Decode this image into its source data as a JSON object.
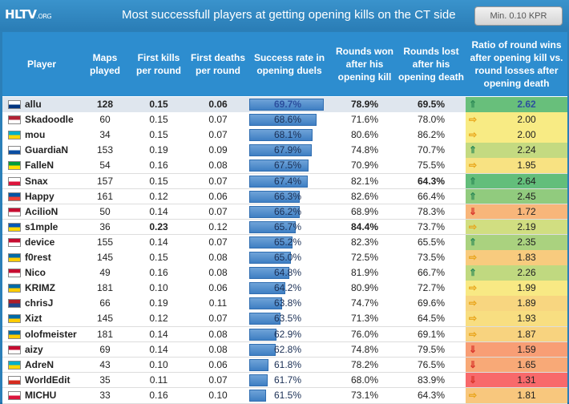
{
  "header": {
    "logo": "HLTV",
    "logo_suffix": ".ORG",
    "title": "Most successfull players at getting opening kills on the CT side",
    "filter_button": "Min. 0.10 KPR"
  },
  "columns": [
    "Player",
    "Maps played",
    "First kills per round",
    "First deaths per round",
    "Success rate in opening duels",
    "Rounds won after his opening kill",
    "Rounds lost after his opening death",
    "Ratio of round wins after opening kill vs. round losses after opening death"
  ],
  "colors": {
    "header_bg": "#2d8dcf",
    "bar": "#4f8fcf",
    "highlight_text": "#2c4f9e",
    "best_green": "#2a7a1a"
  },
  "chart_data": {
    "type": "table",
    "title": "Most successfull players at getting opening kills on the CT side",
    "filter": "Min. 0.10 KPR",
    "rows": [
      {
        "player": "allu",
        "flag": "finland",
        "maps": "128",
        "fk": "0.15",
        "fd": "0.06",
        "success": "69.7%",
        "success_value": 69.7,
        "won": "78.9%",
        "lost": "69.5%",
        "ratio": "2.62",
        "ratio_value": 2.62,
        "trend": "up"
      },
      {
        "player": "Skadoodle",
        "flag": "usa",
        "maps": "60",
        "fk": "0.15",
        "fd": "0.07",
        "success": "68.6%",
        "success_value": 68.6,
        "won": "71.6%",
        "lost": "78.0%",
        "ratio": "2.00",
        "ratio_value": 2.0,
        "trend": "flat"
      },
      {
        "player": "mou",
        "flag": "kazakhstan",
        "maps": "34",
        "fk": "0.15",
        "fd": "0.07",
        "success": "68.1%",
        "success_value": 68.1,
        "won": "80.6%",
        "lost": "86.2%",
        "ratio": "2.00",
        "ratio_value": 2.0,
        "trend": "flat"
      },
      {
        "player": "GuardiaN",
        "flag": "slovakia",
        "maps": "153",
        "fk": "0.19",
        "fd": "0.09",
        "success": "67.9%",
        "success_value": 67.9,
        "won": "74.8%",
        "lost": "70.7%",
        "ratio": "2.24",
        "ratio_value": 2.24,
        "trend": "up"
      },
      {
        "player": "FalleN",
        "flag": "brazil",
        "maps": "54",
        "fk": "0.16",
        "fd": "0.08",
        "success": "67.5%",
        "success_value": 67.5,
        "won": "70.9%",
        "lost": "75.5%",
        "ratio": "1.95",
        "ratio_value": 1.95,
        "trend": "flat"
      },
      {
        "player": "Snax",
        "flag": "poland",
        "maps": "157",
        "fk": "0.15",
        "fd": "0.07",
        "success": "67.4%",
        "success_value": 67.4,
        "won": "82.1%",
        "lost": "64.3%",
        "ratio": "2.64",
        "ratio_value": 2.64,
        "trend": "up"
      },
      {
        "player": "Happy",
        "flag": "france",
        "maps": "161",
        "fk": "0.12",
        "fd": "0.06",
        "success": "66.3%",
        "success_value": 66.3,
        "won": "82.6%",
        "lost": "66.4%",
        "ratio": "2.45",
        "ratio_value": 2.45,
        "trend": "up"
      },
      {
        "player": "AcilioN",
        "flag": "denmark",
        "maps": "50",
        "fk": "0.14",
        "fd": "0.07",
        "success": "66.2%",
        "success_value": 66.2,
        "won": "68.9%",
        "lost": "78.3%",
        "ratio": "1.72",
        "ratio_value": 1.72,
        "trend": "down"
      },
      {
        "player": "s1mple",
        "flag": "ukraine",
        "maps": "36",
        "fk": "0.23",
        "fd": "0.12",
        "success": "65.7%",
        "success_value": 65.7,
        "won": "84.4%",
        "lost": "73.7%",
        "ratio": "2.19",
        "ratio_value": 2.19,
        "trend": "flat"
      },
      {
        "player": "device",
        "flag": "denmark",
        "maps": "155",
        "fk": "0.14",
        "fd": "0.07",
        "success": "65.2%",
        "success_value": 65.2,
        "won": "82.3%",
        "lost": "65.5%",
        "ratio": "2.35",
        "ratio_value": 2.35,
        "trend": "up"
      },
      {
        "player": "f0rest",
        "flag": "sweden",
        "maps": "145",
        "fk": "0.15",
        "fd": "0.08",
        "success": "65.0%",
        "success_value": 65.0,
        "won": "72.5%",
        "lost": "73.5%",
        "ratio": "1.83",
        "ratio_value": 1.83,
        "trend": "flat"
      },
      {
        "player": "Nico",
        "flag": "denmark",
        "maps": "49",
        "fk": "0.16",
        "fd": "0.08",
        "success": "64.8%",
        "success_value": 64.8,
        "won": "81.9%",
        "lost": "66.7%",
        "ratio": "2.26",
        "ratio_value": 2.26,
        "trend": "up"
      },
      {
        "player": "KRIMZ",
        "flag": "sweden",
        "maps": "181",
        "fk": "0.10",
        "fd": "0.06",
        "success": "64.2%",
        "success_value": 64.2,
        "won": "80.9%",
        "lost": "72.7%",
        "ratio": "1.99",
        "ratio_value": 1.99,
        "trend": "flat"
      },
      {
        "player": "chrisJ",
        "flag": "netherlands",
        "maps": "66",
        "fk": "0.19",
        "fd": "0.11",
        "success": "63.8%",
        "success_value": 63.8,
        "won": "74.7%",
        "lost": "69.6%",
        "ratio": "1.89",
        "ratio_value": 1.89,
        "trend": "flat"
      },
      {
        "player": "Xizt",
        "flag": "sweden",
        "maps": "145",
        "fk": "0.12",
        "fd": "0.07",
        "success": "63.5%",
        "success_value": 63.5,
        "won": "71.3%",
        "lost": "64.5%",
        "ratio": "1.93",
        "ratio_value": 1.93,
        "trend": "flat"
      },
      {
        "player": "olofmeister",
        "flag": "sweden",
        "maps": "181",
        "fk": "0.14",
        "fd": "0.08",
        "success": "62.9%",
        "success_value": 62.9,
        "won": "76.0%",
        "lost": "69.1%",
        "ratio": "1.87",
        "ratio_value": 1.87,
        "trend": "flat"
      },
      {
        "player": "aizy",
        "flag": "denmark",
        "maps": "69",
        "fk": "0.14",
        "fd": "0.08",
        "success": "62.8%",
        "success_value": 62.8,
        "won": "74.8%",
        "lost": "79.5%",
        "ratio": "1.59",
        "ratio_value": 1.59,
        "trend": "down"
      },
      {
        "player": "AdreN",
        "flag": "kazakhstan",
        "maps": "43",
        "fk": "0.10",
        "fd": "0.06",
        "success": "61.8%",
        "success_value": 61.8,
        "won": "78.2%",
        "lost": "76.5%",
        "ratio": "1.65",
        "ratio_value": 1.65,
        "trend": "down"
      },
      {
        "player": "WorldEdit",
        "flag": "russia",
        "maps": "35",
        "fk": "0.11",
        "fd": "0.07",
        "success": "61.7%",
        "success_value": 61.7,
        "won": "68.0%",
        "lost": "83.9%",
        "ratio": "1.31",
        "ratio_value": 1.31,
        "trend": "down"
      },
      {
        "player": "MICHU",
        "flag": "poland",
        "maps": "33",
        "fk": "0.16",
        "fd": "0.10",
        "success": "61.5%",
        "success_value": 61.5,
        "won": "73.1%",
        "lost": "64.3%",
        "ratio": "1.81",
        "ratio_value": 1.81,
        "trend": "flat"
      }
    ]
  }
}
